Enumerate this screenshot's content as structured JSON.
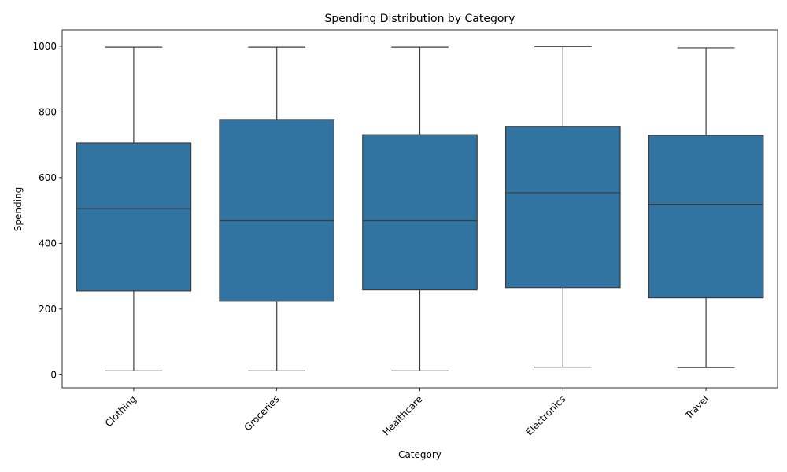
{
  "chart_data": {
    "type": "box",
    "title": "Spending Distribution by Category",
    "xlabel": "Category",
    "ylabel": "Spending",
    "ylim": [
      -40,
      1050
    ],
    "yticks": [
      0,
      200,
      400,
      600,
      800,
      1000
    ],
    "categories": [
      "Clothing",
      "Groceries",
      "Healthcare",
      "Electronics",
      "Travel"
    ],
    "boxes": [
      {
        "category": "Clothing",
        "min": 12,
        "q1": 255,
        "median": 506,
        "q3": 705,
        "max": 997
      },
      {
        "category": "Groceries",
        "min": 12,
        "q1": 224,
        "median": 469,
        "q3": 777,
        "max": 997
      },
      {
        "category": "Healthcare",
        "min": 12,
        "q1": 258,
        "median": 469,
        "q3": 731,
        "max": 997
      },
      {
        "category": "Electronics",
        "min": 23,
        "q1": 265,
        "median": 554,
        "q3": 756,
        "max": 999
      },
      {
        "category": "Travel",
        "min": 22,
        "q1": 234,
        "median": 519,
        "q3": 729,
        "max": 995
      }
    ],
    "box_color": "#3274a1",
    "line_color": "#3d3d3d",
    "x_tick_rotation": 45,
    "grid": false,
    "legend": "none"
  }
}
